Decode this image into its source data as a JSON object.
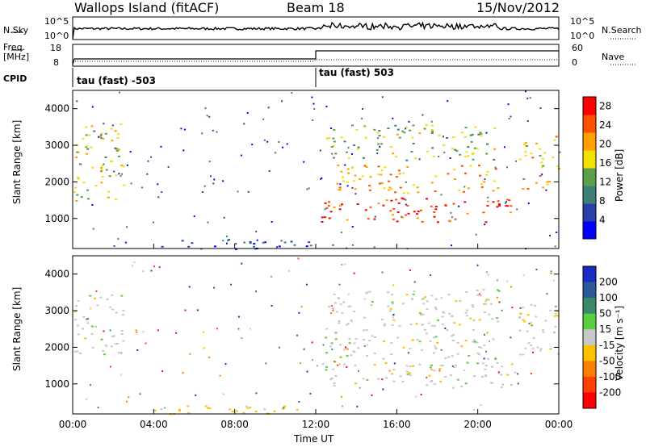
{
  "header": {
    "station": "Wallops Island (fitACF)",
    "beam": "Beam 18",
    "date": "15/Nov/2012"
  },
  "strip_labels": {
    "nsky": "N.Sky",
    "nsearch": "N.Search",
    "freq": "Freq.",
    "freq_unit": "[MHz]",
    "nave": "Nave",
    "cpid": "CPID",
    "nsky_ticks": [
      "10^5",
      "10^0"
    ],
    "nsearch_ticks": [
      "10^5",
      "10^0"
    ],
    "freq_ticks": [
      "18",
      "8"
    ],
    "nave_ticks": [
      "60",
      "0"
    ]
  },
  "cpid_segments": [
    {
      "label": "tau (fast) -503",
      "start": "00:00",
      "end": "12:00"
    },
    {
      "label": "tau (fast) 503",
      "start": "12:00",
      "end": "24:00"
    }
  ],
  "chart_data": [
    {
      "type": "heatmap",
      "name": "power",
      "ylabel": "Slant Range [km]",
      "xlabel": "Time UT",
      "xlim": [
        0,
        24
      ],
      "ylim": [
        180,
        4500
      ],
      "yticks": [
        1000,
        2000,
        3000,
        4000
      ],
      "xticks": [
        "00:00",
        "04:00",
        "08:00",
        "12:00",
        "16:00",
        "20:00",
        "00:00"
      ],
      "colorbar": {
        "label": "Power [dB]",
        "ticks": [
          4,
          8,
          12,
          16,
          20,
          24,
          28
        ],
        "range": [
          0,
          30
        ],
        "colors": [
          "#0000ff",
          "#2a3fa8",
          "#3d7f77",
          "#5a9f4a",
          "#f2e000",
          "#ffa000",
          "#ff5000",
          "#ff0000"
        ]
      },
      "regions": [
        {
          "t0": 0.0,
          "t1": 2.5,
          "r0": 1500,
          "r1": 3600,
          "level": 16
        },
        {
          "t0": 12.2,
          "t1": 21.8,
          "r0": 900,
          "r1": 1600,
          "level": 26
        },
        {
          "t0": 13.0,
          "t1": 21.0,
          "r0": 1700,
          "r1": 2500,
          "level": 20
        },
        {
          "t0": 12.5,
          "t1": 21.0,
          "r0": 2600,
          "r1": 3600,
          "level": 14
        },
        {
          "t0": 22.0,
          "t1": 24.0,
          "r0": 1800,
          "r1": 3300,
          "level": 18
        },
        {
          "t0": 4.0,
          "t1": 12.0,
          "r0": 180,
          "r1": 450,
          "level": 6
        }
      ]
    },
    {
      "type": "heatmap",
      "name": "velocity",
      "ylabel": "Slant Range [km]",
      "xlabel": "Time UT",
      "xlim": [
        0,
        24
      ],
      "ylim": [
        180,
        4500
      ],
      "yticks": [
        1000,
        2000,
        3000,
        4000
      ],
      "xticks": [
        "00:00",
        "04:00",
        "08:00",
        "12:00",
        "16:00",
        "20:00",
        "00:00"
      ],
      "colorbar": {
        "label": "Velocity [m s⁻¹]",
        "ticks": [
          "200",
          "100",
          "50",
          "15",
          "-15",
          "-50",
          "-100",
          "-200"
        ],
        "colors": [
          "#1a2cc4",
          "#2a5a9a",
          "#3a8a6a",
          "#5ad040",
          "#c8c8c8",
          "#ffc000",
          "#ff8000",
          "#ff4000",
          "#ff0000"
        ]
      },
      "regions": [
        {
          "t0": 0.0,
          "t1": 2.5,
          "r0": 1800,
          "r1": 3500,
          "level": 0
        },
        {
          "t0": 12.2,
          "t1": 21.8,
          "r0": 900,
          "r1": 1600,
          "level": 0
        },
        {
          "t0": 12.4,
          "t1": 13.2,
          "r0": 1300,
          "r1": 2700,
          "level": 30
        },
        {
          "t0": 13.0,
          "t1": 21.0,
          "r0": 1700,
          "r1": 2500,
          "level": 0
        },
        {
          "t0": 12.5,
          "t1": 21.0,
          "r0": 2600,
          "r1": 3600,
          "level": 0
        },
        {
          "t0": 22.0,
          "t1": 24.0,
          "r0": 1800,
          "r1": 3200,
          "level": 0
        },
        {
          "t0": 4.0,
          "t1": 12.0,
          "r0": 180,
          "r1": 450,
          "level": -30
        }
      ]
    }
  ]
}
